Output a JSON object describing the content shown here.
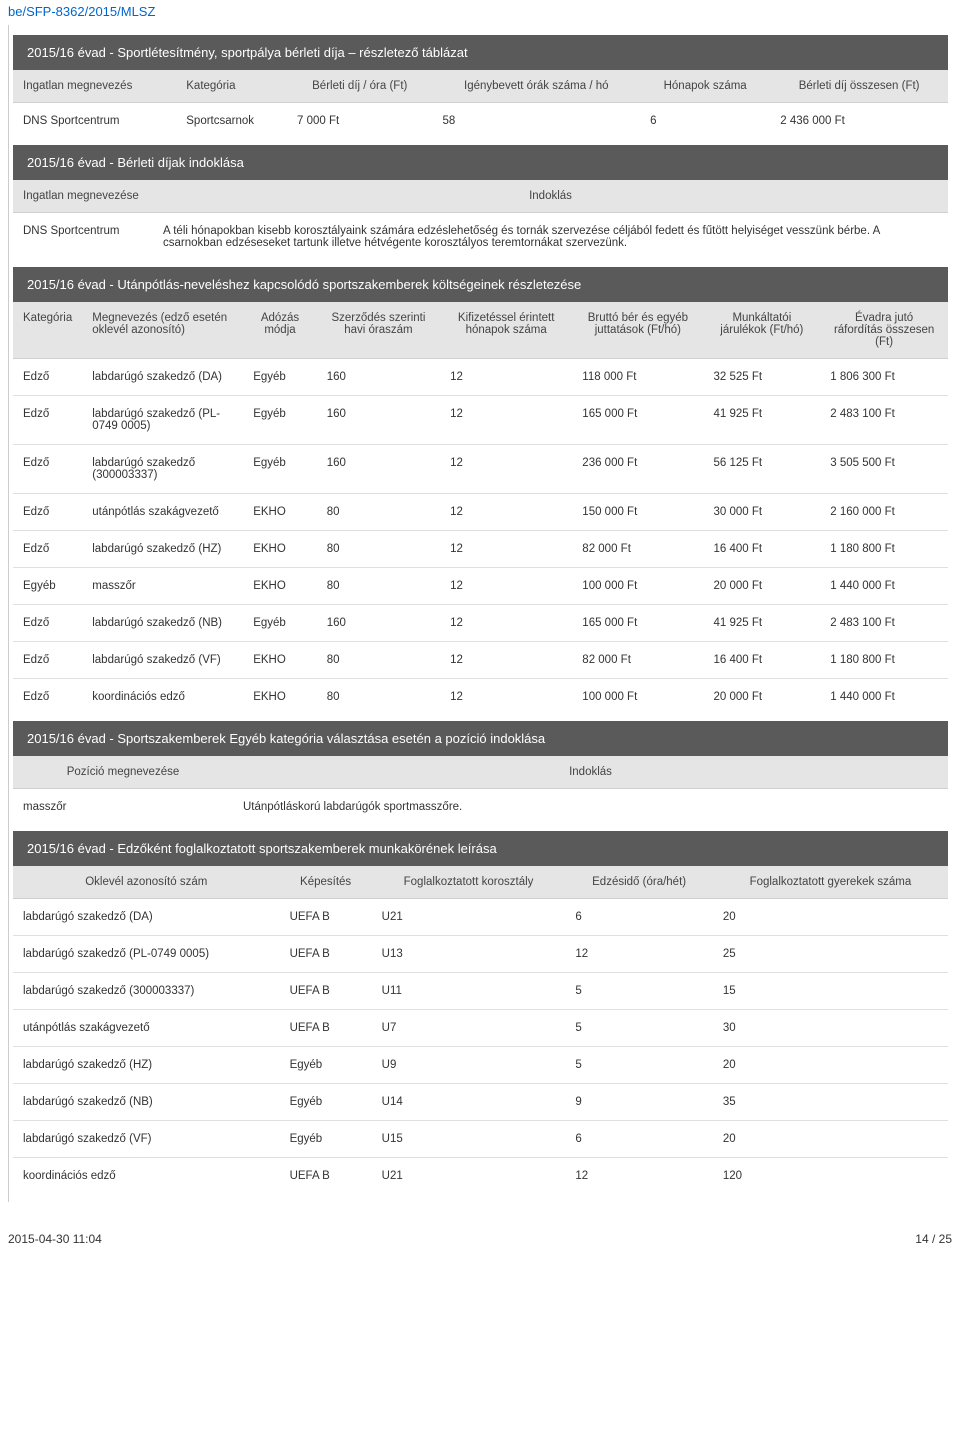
{
  "doc_header": "be/SFP-8362/2015/MLSZ",
  "footer_left": "2015-04-30 11:04",
  "footer_right": "14 / 25",
  "section1": {
    "title": "2015/16 évad - Sportlétesítmény, sportpálya bérleti díja – részletező táblázat",
    "headers": [
      "Ingatlan megnevezés",
      "Kategória",
      "Bérleti díj / óra (Ft)",
      "Igénybevett órák száma / hó",
      "Hónapok száma",
      "Bérleti díj összesen (Ft)"
    ],
    "rows": [
      [
        "DNS Sportcentrum",
        "Sportcsarnok",
        "7 000 Ft",
        "58",
        "6",
        "2 436 000 Ft"
      ]
    ]
  },
  "section2": {
    "title": "2015/16 évad - Bérleti díjak indoklása",
    "headers": [
      "Ingatlan megnevezése",
      "Indoklás"
    ],
    "rows": [
      [
        "DNS Sportcentrum",
        "A téli hónapokban kisebb korosztályaink számára edzéslehetőség és tornák szervezése céljából fedett és fűtött helyiséget vesszünk bérbe. A csarnokban edzéseseket tartunk illetve hétvégente korosztályos teremtornákat szervezünk."
      ]
    ]
  },
  "section3": {
    "title": "2015/16 évad - Utánpótlás-neveléshez kapcsolódó sportszakemberek költségeinek részletezése",
    "headers": [
      "Kategória",
      "Megnevezés (edző esetén oklevél azonosító)",
      "Adózás módja",
      "Szerződés szerinti havi óraszám",
      "Kifizetéssel érintett hónapok száma",
      "Bruttó bér és egyéb juttatások (Ft/hó)",
      "Munkáltatói járulékok (Ft/hó)",
      "Évadra jutó ráfordítás összesen (Ft)"
    ],
    "rows": [
      [
        "Edző",
        "labdarúgó szakedző (DA)",
        "Egyéb",
        "160",
        "12",
        "118 000 Ft",
        "32 525 Ft",
        "1 806 300 Ft"
      ],
      [
        "Edző",
        "labdarúgó szakedző (PL-0749 0005)",
        "Egyéb",
        "160",
        "12",
        "165 000 Ft",
        "41 925 Ft",
        "2 483 100 Ft"
      ],
      [
        "Edző",
        "labdarúgó szakedző (300003337)",
        "Egyéb",
        "160",
        "12",
        "236 000 Ft",
        "56 125 Ft",
        "3 505 500 Ft"
      ],
      [
        "Edző",
        "utánpótlás szakágvezető",
        "EKHO",
        "80",
        "12",
        "150 000 Ft",
        "30 000 Ft",
        "2 160 000 Ft"
      ],
      [
        "Edző",
        "labdarúgó szakedző (HZ)",
        "EKHO",
        "80",
        "12",
        "82 000 Ft",
        "16 400 Ft",
        "1 180 800 Ft"
      ],
      [
        "Egyéb",
        "masszőr",
        "EKHO",
        "80",
        "12",
        "100 000 Ft",
        "20 000 Ft",
        "1 440 000 Ft"
      ],
      [
        "Edző",
        "labdarúgó szakedző (NB)",
        "Egyéb",
        "160",
        "12",
        "165 000 Ft",
        "41 925 Ft",
        "2 483 100 Ft"
      ],
      [
        "Edző",
        "labdarúgó szakedző (VF)",
        "EKHO",
        "80",
        "12",
        "82 000 Ft",
        "16 400 Ft",
        "1 180 800 Ft"
      ],
      [
        "Edző",
        "koordinációs edző",
        "EKHO",
        "80",
        "12",
        "100 000 Ft",
        "20 000 Ft",
        "1 440 000 Ft"
      ]
    ]
  },
  "section4": {
    "title": "2015/16 évad - Sportszakemberek Egyéb kategória választása esetén a pozíció indoklása",
    "headers": [
      "Pozíció megnevezése",
      "Indoklás"
    ],
    "rows": [
      [
        "masszőr",
        "Utánpótláskorú labdarúgók sportmasszőre."
      ]
    ]
  },
  "section5": {
    "title": "2015/16 évad - Edzőként foglalkoztatott sportszakemberek munkakörének leírása",
    "headers": [
      "Oklevél azonosító szám",
      "Képesítés",
      "Foglalkoztatott korosztály",
      "Edzésidő (óra/hét)",
      "Foglalkoztatott gyerekek száma"
    ],
    "rows": [
      [
        "labdarúgó szakedző (DA)",
        "UEFA B",
        "U21",
        "6",
        "20"
      ],
      [
        "labdarúgó szakedző (PL-0749 0005)",
        "UEFA B",
        "U13",
        "12",
        "25"
      ],
      [
        "labdarúgó szakedző (300003337)",
        "UEFA B",
        "U11",
        "5",
        "15"
      ],
      [
        "utánpótlás szakágvezető",
        "UEFA B",
        "U7",
        "5",
        "30"
      ],
      [
        "labdarúgó szakedző (HZ)",
        "Egyéb",
        "U9",
        "5",
        "20"
      ],
      [
        "labdarúgó szakedző (NB)",
        "Egyéb",
        "U14",
        "9",
        "35"
      ],
      [
        "labdarúgó szakedző (VF)",
        "Egyéb",
        "U15",
        "6",
        "20"
      ],
      [
        "koordinációs edző",
        "UEFA B",
        "U21",
        "12",
        "120"
      ]
    ]
  }
}
